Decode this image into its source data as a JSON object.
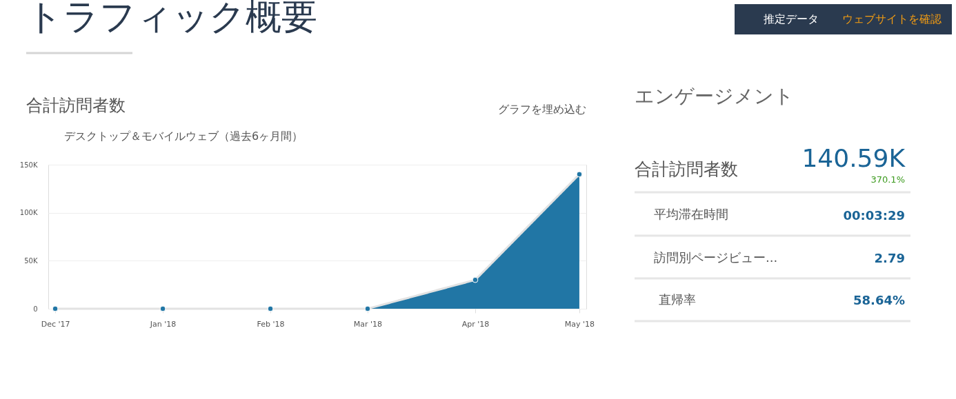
{
  "chart_data": [
    {
      "type": "area",
      "title": "合計訪問者数",
      "subtitle": "デスクトップ＆モバイルウェブ（過去6ヶ月間）",
      "annotations": [
        "トラフィック概要",
        "推定データ",
        "ウェブサイトを確認",
        "グラフを埋め込む"
      ],
      "x": [
        "2017-12",
        "2018-01",
        "2018-02",
        "2018-03",
        "2018-04",
        "2018-05"
      ],
      "series": [
        {
          "color": "#2176a5",
          "values": [
            0,
            0,
            0,
            0,
            30000,
            140000
          ]
        }
      ],
      "xlim": [
        "2017-11-29",
        "2018-05-03"
      ],
      "xticks": [
        {
          "value": "2017-12",
          "label": "Dec '17"
        },
        {
          "value": "2018-01",
          "label": "Jan '18"
        },
        {
          "value": "2018-02",
          "label": "Feb '18"
        },
        {
          "value": "2018-03",
          "label": "Mar '18"
        },
        {
          "value": "2018-04",
          "label": "Apr '18"
        },
        {
          "value": "2018-05",
          "label": "May '18"
        }
      ],
      "ylim": [
        0,
        150000
      ],
      "yticks": [
        0,
        {
          "value": 50000,
          "label": "50K"
        },
        {
          "value": 100000,
          "label": "100K"
        },
        {
          "value": 150000,
          "label": "150K"
        }
      ],
      "grid": "y",
      "legend": false,
      "marker": "circle",
      "line_style": "solid"
    },
    {
      "type": "other",
      "annotations": [
        "エンゲージメント",
        "合計訪問者数",
        "140.59K",
        "370.1%",
        "平均滞在時間",
        "00:03:29",
        "訪問別ページビュー...",
        "2.79",
        "直帰率",
        "58.64%"
      ]
    }
  ]
}
